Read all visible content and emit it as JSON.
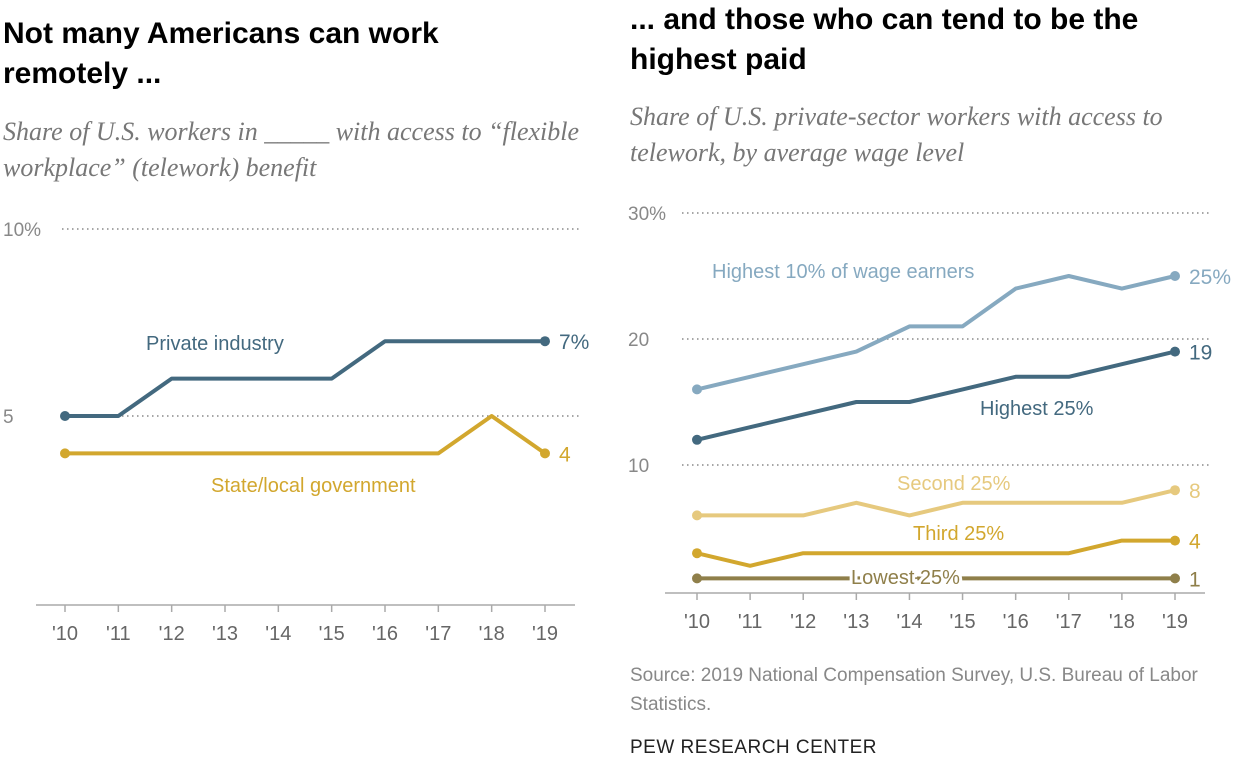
{
  "left": {
    "title": "Not many Americans can work remotely ...",
    "subtitle": "Share of U.S. workers in _____ with access to “flexible workplace” (telework) benefit"
  },
  "right": {
    "title": "... and those who can tend to be the highest paid",
    "subtitle": "Share of U.S. private-sector workers with access to telework, by average wage level"
  },
  "source": "Source: 2019 National Compensation Survey, U.S. Bureau of Labor Statistics.",
  "brand": "PEW RESEARCH CENTER",
  "chart_data": [
    {
      "type": "line",
      "categories": [
        "'10",
        "'11",
        "'12",
        "'13",
        "'14",
        "'15",
        "'16",
        "'17",
        "'18",
        "'19"
      ],
      "ylim": [
        0,
        10
      ],
      "yticks": [
        {
          "v": 10,
          "label": "10%"
        },
        {
          "v": 5,
          "label": "5"
        }
      ],
      "grid": true,
      "series": [
        {
          "name": "Private industry",
          "color": "#43697f",
          "values": [
            5,
            5,
            6,
            6,
            6,
            6,
            7,
            7,
            7,
            7
          ],
          "end_label": "7%"
        },
        {
          "name": "State/local government",
          "color": "#d2a72e",
          "values": [
            4,
            4,
            4,
            4,
            4,
            4,
            4,
            4,
            5,
            4
          ],
          "end_label": "4"
        }
      ]
    },
    {
      "type": "line",
      "categories": [
        "'10",
        "'11",
        "'12",
        "'13",
        "'14",
        "'15",
        "'16",
        "'17",
        "'18",
        "'19"
      ],
      "ylim": [
        0,
        30
      ],
      "yticks": [
        {
          "v": 30,
          "label": "30%"
        },
        {
          "v": 20,
          "label": "20"
        },
        {
          "v": 10,
          "label": "10"
        }
      ],
      "grid": true,
      "series": [
        {
          "name": "Highest 10% of wage earners",
          "color": "#86a9c0",
          "values": [
            16,
            17,
            18,
            19,
            21,
            21,
            24,
            25,
            24,
            25
          ],
          "end_label": "25%"
        },
        {
          "name": "Highest 25%",
          "color": "#43697f",
          "values": [
            12,
            13,
            14,
            15,
            15,
            16,
            17,
            17,
            18,
            19
          ],
          "end_label": "19"
        },
        {
          "name": "Second 25%",
          "color": "#e6c97e",
          "values": [
            6,
            6,
            6,
            7,
            6,
            7,
            7,
            7,
            7,
            8
          ],
          "end_label": "8"
        },
        {
          "name": "Third 25%",
          "color": "#d2a72e",
          "values": [
            3,
            2,
            3,
            3,
            3,
            3,
            3,
            3,
            4,
            4
          ],
          "end_label": "4"
        },
        {
          "name": "Lowest 25%",
          "color": "#8f7f4a",
          "values": [
            1,
            1,
            1,
            1,
            1,
            1,
            1,
            1,
            1,
            1
          ],
          "end_label": "1"
        }
      ]
    }
  ]
}
